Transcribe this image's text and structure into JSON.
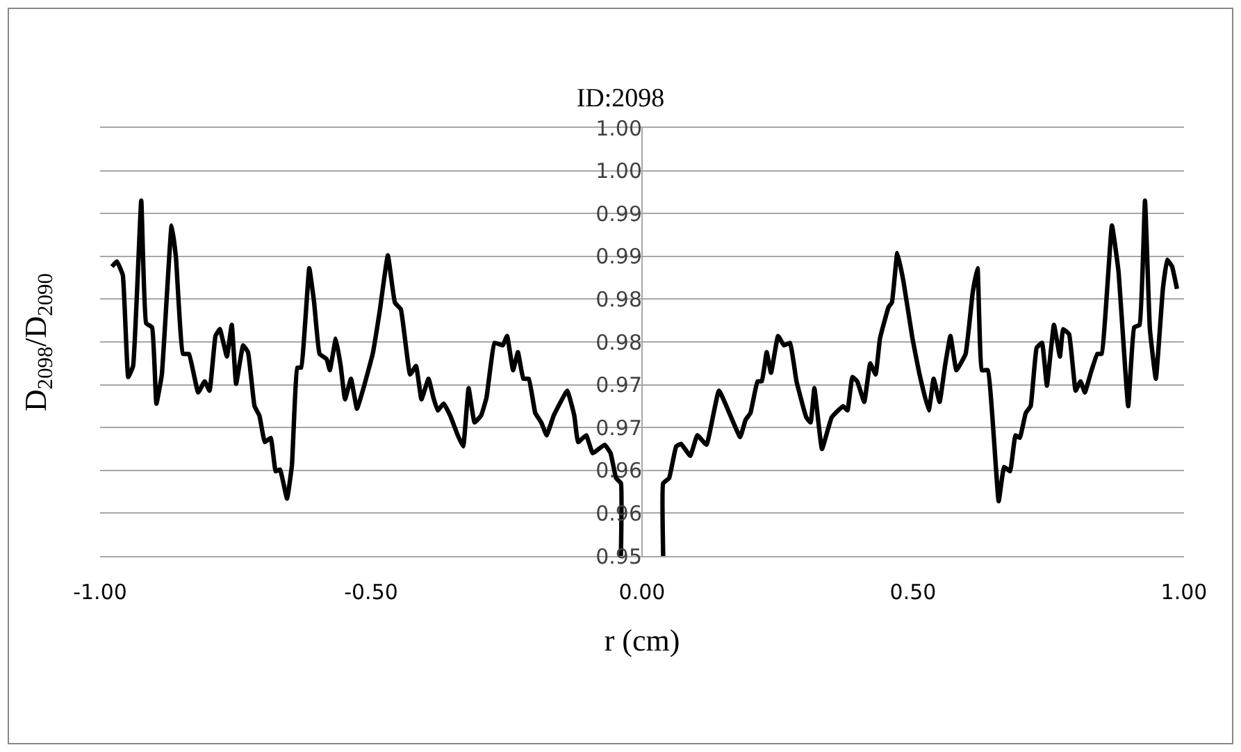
{
  "chart_data": {
    "type": "line",
    "title": "ID:2098",
    "xlabel": "r (cm)",
    "ylabel": "D$_{2098}$/D$_{2090}$",
    "x": [
      -0.978,
      -0.969,
      -0.958,
      -0.948,
      -0.939,
      -0.924,
      -0.915,
      -0.904,
      -0.896,
      -0.886,
      -0.868,
      -0.86,
      -0.847,
      -0.836,
      -0.819,
      -0.807,
      -0.798,
      -0.787,
      -0.779,
      -0.766,
      -0.757,
      -0.749,
      -0.736,
      -0.727,
      -0.715,
      -0.706,
      -0.696,
      -0.685,
      -0.676,
      -0.668,
      -0.655,
      -0.646,
      -0.636,
      -0.629,
      -0.614,
      -0.605,
      -0.595,
      -0.582,
      -0.576,
      -0.565,
      -0.556,
      -0.548,
      -0.537,
      -0.526,
      -0.514,
      -0.497,
      -0.484,
      -0.469,
      -0.456,
      -0.445,
      -0.428,
      -0.417,
      -0.407,
      -0.394,
      -0.385,
      -0.377,
      -0.366,
      -0.354,
      -0.34,
      -0.33,
      -0.32,
      -0.309,
      -0.297,
      -0.287,
      -0.272,
      -0.257,
      -0.249,
      -0.238,
      -0.229,
      -0.219,
      -0.209,
      -0.197,
      -0.186,
      -0.176,
      -0.163,
      -0.138,
      -0.125,
      -0.118,
      -0.103,
      -0.091,
      -0.069,
      -0.058,
      -0.048,
      -0.039,
      -0.039,
      0.0,
      0.039,
      0.039,
      0.05,
      0.063,
      0.072,
      0.089,
      0.102,
      0.119,
      0.142,
      0.181,
      0.191,
      0.2,
      0.213,
      0.221,
      0.23,
      0.238,
      0.251,
      0.262,
      0.273,
      0.285,
      0.303,
      0.311,
      0.318,
      0.332,
      0.35,
      0.371,
      0.379,
      0.388,
      0.397,
      0.41,
      0.421,
      0.431,
      0.439,
      0.455,
      0.461,
      0.471,
      0.482,
      0.499,
      0.512,
      0.529,
      0.538,
      0.549,
      0.559,
      0.569,
      0.58,
      0.597,
      0.61,
      0.619,
      0.627,
      0.638,
      0.658,
      0.668,
      0.679,
      0.689,
      0.697,
      0.708,
      0.717,
      0.728,
      0.738,
      0.747,
      0.76,
      0.771,
      0.777,
      0.788,
      0.8,
      0.809,
      0.817,
      0.828,
      0.84,
      0.848,
      0.867,
      0.879,
      0.897,
      0.908,
      0.918,
      0.928,
      0.937,
      0.948,
      0.961,
      0.969,
      0.978,
      0.987
    ],
    "series": [
      {
        "color": "#000000",
        "values": [
          0.9838,
          0.9844,
          0.9828,
          0.9709,
          0.9722,
          0.9915,
          0.9772,
          0.9767,
          0.9678,
          0.9712,
          0.9886,
          0.9849,
          0.9736,
          0.9736,
          0.9691,
          0.9704,
          0.9693,
          0.9757,
          0.9765,
          0.9733,
          0.977,
          0.9701,
          0.9746,
          0.9738,
          0.9675,
          0.9664,
          0.9633,
          0.9638,
          0.9599,
          0.9601,
          0.9567,
          0.9606,
          0.972,
          0.972,
          0.9836,
          0.9796,
          0.9736,
          0.973,
          0.9717,
          0.9754,
          0.9722,
          0.9683,
          0.9707,
          0.9672,
          0.9696,
          0.9736,
          0.9786,
          0.9851,
          0.9796,
          0.9788,
          0.9712,
          0.9722,
          0.9683,
          0.9707,
          0.9685,
          0.967,
          0.9678,
          0.9664,
          0.9641,
          0.9628,
          0.9696,
          0.9656,
          0.9664,
          0.9685,
          0.9749,
          0.9746,
          0.9757,
          0.9717,
          0.9738,
          0.9707,
          0.9707,
          0.9667,
          0.9656,
          0.9641,
          0.9664,
          0.9693,
          0.9664,
          0.9633,
          0.9641,
          0.962,
          0.963,
          0.962,
          0.9591,
          0.9585,
          0.95,
          null,
          0.95,
          0.9585,
          0.9591,
          0.9628,
          0.9631,
          0.9617,
          0.9641,
          0.963,
          0.9693,
          0.9639,
          0.9659,
          0.9667,
          0.9704,
          0.9704,
          0.9738,
          0.9714,
          0.9757,
          0.9746,
          0.9749,
          0.9704,
          0.9662,
          0.9656,
          0.9696,
          0.9625,
          0.9662,
          0.9675,
          0.967,
          0.9709,
          0.9704,
          0.968,
          0.9725,
          0.9712,
          0.9754,
          0.9791,
          0.9796,
          0.9854,
          0.9822,
          0.9754,
          0.9712,
          0.967,
          0.9707,
          0.968,
          0.9722,
          0.9757,
          0.9717,
          0.9736,
          0.9807,
          0.9836,
          0.9717,
          0.9717,
          0.9564,
          0.9604,
          0.9599,
          0.9641,
          0.9638,
          0.9667,
          0.9675,
          0.9743,
          0.9749,
          0.9699,
          0.977,
          0.9733,
          0.9765,
          0.9759,
          0.9693,
          0.9704,
          0.9691,
          0.9714,
          0.9736,
          0.9736,
          0.9886,
          0.9833,
          0.9675,
          0.9767,
          0.977,
          0.9915,
          0.9765,
          0.9707,
          0.9812,
          0.9846,
          0.9838,
          0.9812
        ]
      }
    ],
    "xlim": [
      -1.0,
      1.0
    ],
    "xticks": [
      {
        "value": -1.0,
        "label": "-1.00"
      },
      {
        "value": -0.5,
        "label": "-0.50"
      },
      {
        "value": 0.0,
        "label": "0.00"
      },
      {
        "value": 0.5,
        "label": "0.50"
      },
      {
        "value": 1.0,
        "label": "1.00"
      }
    ],
    "ylim": [
      0.95,
      1.0
    ],
    "yticks": [
      {
        "value": 0.95,
        "label": "0.95"
      },
      {
        "value": 0.955,
        "label": "0.96"
      },
      {
        "value": 0.96,
        "label": "0.96"
      },
      {
        "value": 0.965,
        "label": "0.97"
      },
      {
        "value": 0.97,
        "label": "0.97"
      },
      {
        "value": 0.975,
        "label": "0.98"
      },
      {
        "value": 0.98,
        "label": "0.98"
      },
      {
        "value": 0.985,
        "label": "0.99"
      },
      {
        "value": 0.99,
        "label": "0.99"
      },
      {
        "value": 0.995,
        "label": "1.00"
      },
      {
        "value": 1.0,
        "label": "1.00"
      }
    ],
    "grid": "y",
    "marker": "none",
    "line_style": "solid"
  }
}
